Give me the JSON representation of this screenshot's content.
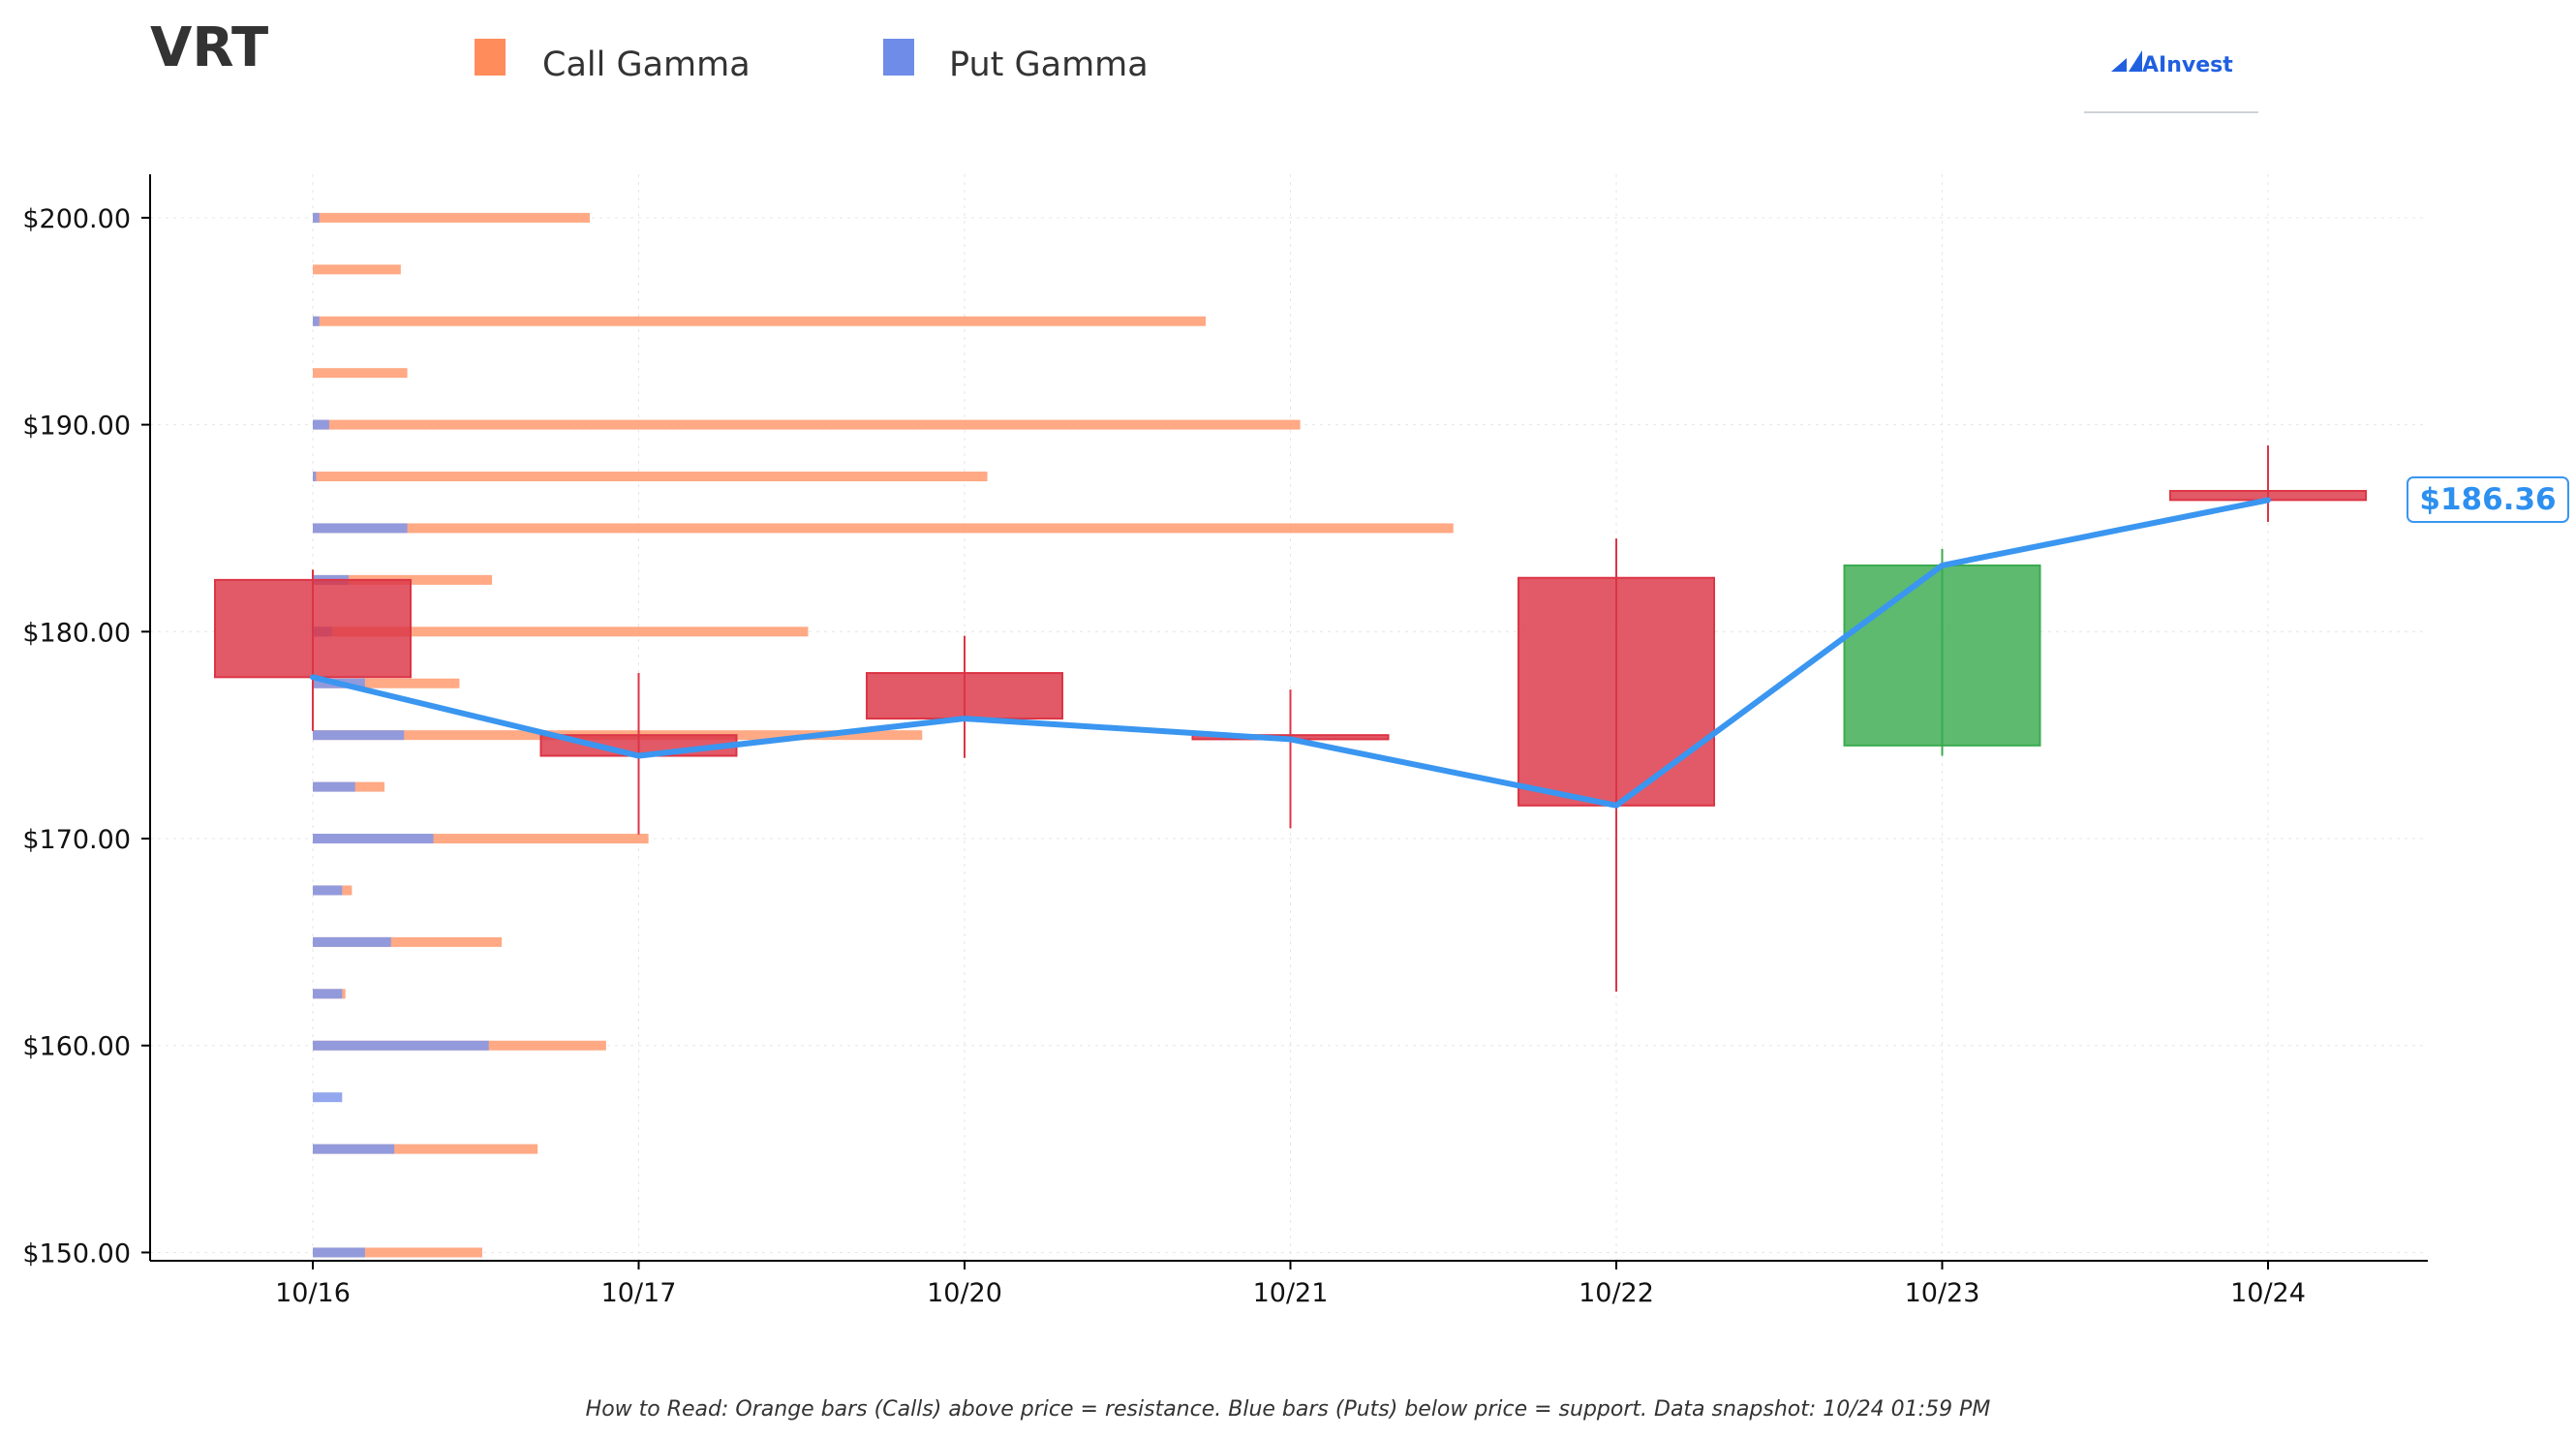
{
  "ticker": "VRT",
  "brand": "AInvest",
  "legend": [
    {
      "label": "Call Gamma",
      "color": "#ff8c5a"
    },
    {
      "label": "Put Gamma",
      "color": "#6f8ce8"
    }
  ],
  "note": "How to Read: Orange bars (Calls) above price = resistance. Blue bars (Puts) below price = support. Data snapshot: 10/24 01:59 PM",
  "last_price_label": "$186.36",
  "colors": {
    "up": "#3aab4f",
    "down": "#dc3545",
    "price_line": "#3a96f0",
    "call": "#ff9a70",
    "put": "#7f98ea"
  },
  "chart_data": {
    "type": "candlestick",
    "categories": [
      "10/16",
      "10/17",
      "10/20",
      "10/21",
      "10/22",
      "10/23",
      "10/24"
    ],
    "y_ticks": [
      "$150.00",
      "$160.00",
      "$170.00",
      "$180.00",
      "$190.00",
      "$200.00"
    ],
    "ylim": [
      149.6,
      202.1
    ],
    "candles": [
      {
        "date": "10/16",
        "open": 182.5,
        "high": 183.0,
        "low": 175.2,
        "close": 177.8
      },
      {
        "date": "10/17",
        "open": 175.0,
        "high": 178.0,
        "low": 170.2,
        "close": 174.0
      },
      {
        "date": "10/20",
        "open": 178.0,
        "high": 179.8,
        "low": 173.9,
        "close": 175.8
      },
      {
        "date": "10/21",
        "open": 175.0,
        "high": 177.2,
        "low": 170.5,
        "close": 174.8
      },
      {
        "date": "10/22",
        "open": 182.6,
        "high": 184.5,
        "low": 162.6,
        "close": 171.6
      },
      {
        "date": "10/23",
        "open": 174.5,
        "high": 184.0,
        "low": 174.0,
        "close": 183.2
      },
      {
        "date": "10/24",
        "open": 186.8,
        "high": 189.0,
        "low": 185.3,
        "close": 186.36
      }
    ],
    "gamma_unit_note": "bar lengths measured in trading-day units from the 10/16 axis origin",
    "gamma": [
      {
        "strike": 200.0,
        "put": 0.02,
        "call": 0.85
      },
      {
        "strike": 197.5,
        "put": 0.0,
        "call": 0.27
      },
      {
        "strike": 195.0,
        "put": 0.02,
        "call": 2.74
      },
      {
        "strike": 192.5,
        "put": 0.0,
        "call": 0.29
      },
      {
        "strike": 190.0,
        "put": 0.05,
        "call": 3.03
      },
      {
        "strike": 187.5,
        "put": 0.01,
        "call": 2.07
      },
      {
        "strike": 185.0,
        "put": 0.29,
        "call": 3.5
      },
      {
        "strike": 182.5,
        "put": 0.11,
        "call": 0.55
      },
      {
        "strike": 180.0,
        "put": 0.06,
        "call": 1.52
      },
      {
        "strike": 177.5,
        "put": 0.16,
        "call": 0.45
      },
      {
        "strike": 175.0,
        "put": 0.28,
        "call": 1.87
      },
      {
        "strike": 172.5,
        "put": 0.13,
        "call": 0.22
      },
      {
        "strike": 170.0,
        "put": 0.37,
        "call": 1.03
      },
      {
        "strike": 167.5,
        "put": 0.09,
        "call": 0.12
      },
      {
        "strike": 165.0,
        "put": 0.24,
        "call": 0.58
      },
      {
        "strike": 162.5,
        "put": 0.09,
        "call": 0.1
      },
      {
        "strike": 160.0,
        "put": 0.54,
        "call": 0.9
      },
      {
        "strike": 157.5,
        "put": 0.09,
        "call": 0.0
      },
      {
        "strike": 155.0,
        "put": 0.25,
        "call": 0.69
      },
      {
        "strike": 150.0,
        "put": 0.16,
        "call": 0.52
      }
    ]
  }
}
